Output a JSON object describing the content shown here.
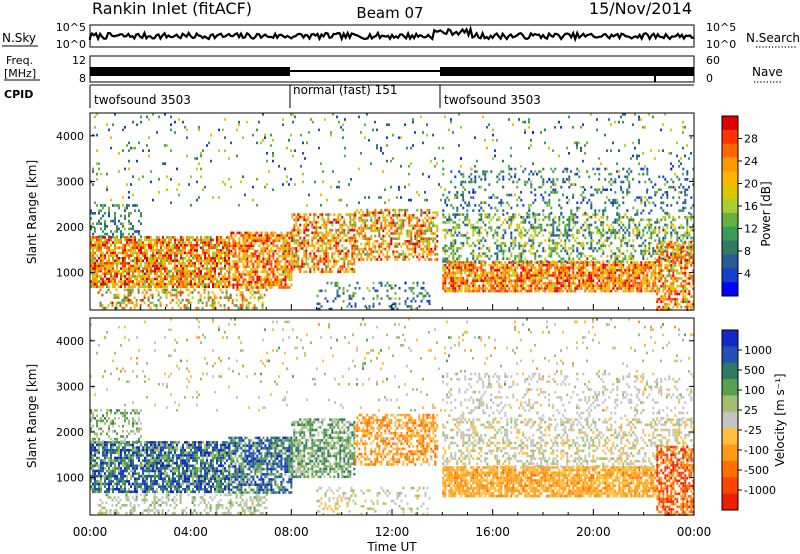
{
  "header": {
    "station": "Rankin Inlet (fitACF)",
    "beam": "Beam 07",
    "date": "15/Nov/2014"
  },
  "top_strips": {
    "nsky_label": "N.Sky",
    "nsky_ticks": [
      "10^5",
      "10^0"
    ],
    "nsearch_label": "N.Search",
    "nsearch_ticks": [
      "10^5",
      "10^0"
    ],
    "freq_label_1": "Freq.",
    "freq_label_2": "[MHz]",
    "freq_ticks": [
      "12",
      "8"
    ],
    "nave_label": "Nave",
    "nave_ticks": [
      "60",
      "0"
    ],
    "cpid_label": "CPID",
    "cpid_segments": [
      {
        "label": "twofsound 3503",
        "start_hour": 0,
        "end_hour": 8
      },
      {
        "label": "normal (fast) 151",
        "start_hour": 8,
        "end_hour": 14
      },
      {
        "label": "twofsound 3503",
        "start_hour": 14,
        "end_hour": 24
      }
    ]
  },
  "axes": {
    "xlabel": "Time UT",
    "x_ticks": [
      "00:00",
      "04:00",
      "08:00",
      "12:00",
      "16:00",
      "20:00",
      "00:00"
    ],
    "ylabel": "Slant Range [km]",
    "y_ticks": [
      "1000",
      "2000",
      "3000",
      "4000"
    ]
  },
  "power_scale": {
    "label": "Power [dB]",
    "ticks": [
      "28",
      "24",
      "20",
      "16",
      "12",
      "8",
      "4"
    ],
    "colors": [
      "#e00000",
      "#ff3300",
      "#ff6600",
      "#ff9900",
      "#ffb400",
      "#ddc800",
      "#aacc33",
      "#66b040",
      "#3a9a5a",
      "#2e7a62",
      "#2c5a96",
      "#1440c8",
      "#0000ff"
    ]
  },
  "velocity_scale": {
    "label": "Velocity [m s⁻¹]",
    "ticks": [
      "1000",
      "500",
      "100",
      "25",
      "-25",
      "-100",
      "-500",
      "-1000"
    ],
    "colors": [
      "#1428c8",
      "#2250b4",
      "#2e7a62",
      "#58a050",
      "#a0c070",
      "#c4c4c4",
      "#ffbe3c",
      "#ff9a14",
      "#ff7000",
      "#ff4400",
      "#ee1e00"
    ]
  },
  "chart_data": [
    {
      "type": "heatmap",
      "title": "Power",
      "xlabel": "Time UT",
      "ylabel": "Slant Range [km]",
      "xlim_hours": [
        0,
        24
      ],
      "ylim_km": [
        180,
        4500
      ],
      "value_label": "Power [dB]",
      "value_range": [
        2,
        30
      ],
      "blobs": [
        {
          "t0": 0.0,
          "t1": 5.5,
          "r0": 700,
          "r1": 1800,
          "v0": 14,
          "v1": 30,
          "d": 0.78
        },
        {
          "t0": 0.0,
          "t1": 2.0,
          "r0": 1800,
          "r1": 2500,
          "v0": 6,
          "v1": 16,
          "d": 0.35
        },
        {
          "t0": 0.3,
          "t1": 7.0,
          "r0": 200,
          "r1": 650,
          "v0": 10,
          "v1": 28,
          "d": 0.35
        },
        {
          "t0": 5.5,
          "t1": 8.0,
          "r0": 700,
          "r1": 1900,
          "v0": 16,
          "v1": 30,
          "d": 0.7
        },
        {
          "t0": 8.0,
          "t1": 10.5,
          "r0": 1000,
          "r1": 2300,
          "v0": 14,
          "v1": 30,
          "d": 0.62
        },
        {
          "t0": 10.5,
          "t1": 13.8,
          "r0": 1300,
          "r1": 2400,
          "v0": 12,
          "v1": 30,
          "d": 0.55
        },
        {
          "t0": 9.0,
          "t1": 13.5,
          "r0": 200,
          "r1": 800,
          "v0": 4,
          "v1": 16,
          "d": 0.22
        },
        {
          "t0": 14.0,
          "t1": 22.5,
          "r0": 600,
          "r1": 1250,
          "v0": 16,
          "v1": 30,
          "d": 0.8
        },
        {
          "t0": 14.0,
          "t1": 24.0,
          "r0": 1250,
          "r1": 2300,
          "v0": 6,
          "v1": 20,
          "d": 0.4
        },
        {
          "t0": 14.0,
          "t1": 24.0,
          "r0": 2300,
          "r1": 3300,
          "v0": 4,
          "v1": 14,
          "d": 0.16
        },
        {
          "t0": 22.5,
          "t1": 24.0,
          "r0": 200,
          "r1": 1700,
          "v0": 14,
          "v1": 30,
          "d": 0.6
        },
        {
          "t0": 0.0,
          "t1": 24.0,
          "r0": 2500,
          "r1": 4500,
          "v0": 4,
          "v1": 20,
          "d": 0.05
        }
      ]
    },
    {
      "type": "heatmap",
      "title": "Velocity",
      "xlabel": "Time UT",
      "ylabel": "Slant Range [km]",
      "xlim_hours": [
        0,
        24
      ],
      "ylim_km": [
        180,
        4500
      ],
      "value_label": "Velocity [m s⁻¹]",
      "value_range": [
        -1000,
        1000
      ],
      "blobs": [
        {
          "t0": 0.0,
          "t1": 5.5,
          "r0": 700,
          "r1": 1800,
          "v0": 100,
          "v1": 1000,
          "d": 0.78
        },
        {
          "t0": 0.0,
          "t1": 2.0,
          "r0": 1800,
          "r1": 2500,
          "v0": 0,
          "v1": 500,
          "d": 0.35
        },
        {
          "t0": 0.3,
          "t1": 7.0,
          "r0": 200,
          "r1": 650,
          "v0": -100,
          "v1": 300,
          "d": 0.35
        },
        {
          "t0": 5.5,
          "t1": 8.0,
          "r0": 700,
          "r1": 1900,
          "v0": 100,
          "v1": 1000,
          "d": 0.7
        },
        {
          "t0": 8.0,
          "t1": 10.5,
          "r0": 1000,
          "r1": 2300,
          "v0": 30,
          "v1": 600,
          "d": 0.62
        },
        {
          "t0": 10.5,
          "t1": 13.8,
          "r0": 1300,
          "r1": 2400,
          "v0": -600,
          "v1": -50,
          "d": 0.55
        },
        {
          "t0": 9.0,
          "t1": 13.5,
          "r0": 200,
          "r1": 800,
          "v0": -200,
          "v1": 200,
          "d": 0.22
        },
        {
          "t0": 14.0,
          "t1": 22.5,
          "r0": 600,
          "r1": 1250,
          "v0": -500,
          "v1": -100,
          "d": 0.8
        },
        {
          "t0": 14.0,
          "t1": 24.0,
          "r0": 1250,
          "r1": 2300,
          "v0": -200,
          "v1": 200,
          "d": 0.4
        },
        {
          "t0": 14.0,
          "t1": 24.0,
          "r0": 2300,
          "r1": 3300,
          "v0": -100,
          "v1": 100,
          "d": 0.16
        },
        {
          "t0": 22.5,
          "t1": 24.0,
          "r0": 200,
          "r1": 1700,
          "v0": -1000,
          "v1": -300,
          "d": 0.6
        },
        {
          "t0": 0.0,
          "t1": 24.0,
          "r0": 2500,
          "r1": 4500,
          "v0": -300,
          "v1": 300,
          "d": 0.05
        }
      ]
    }
  ]
}
